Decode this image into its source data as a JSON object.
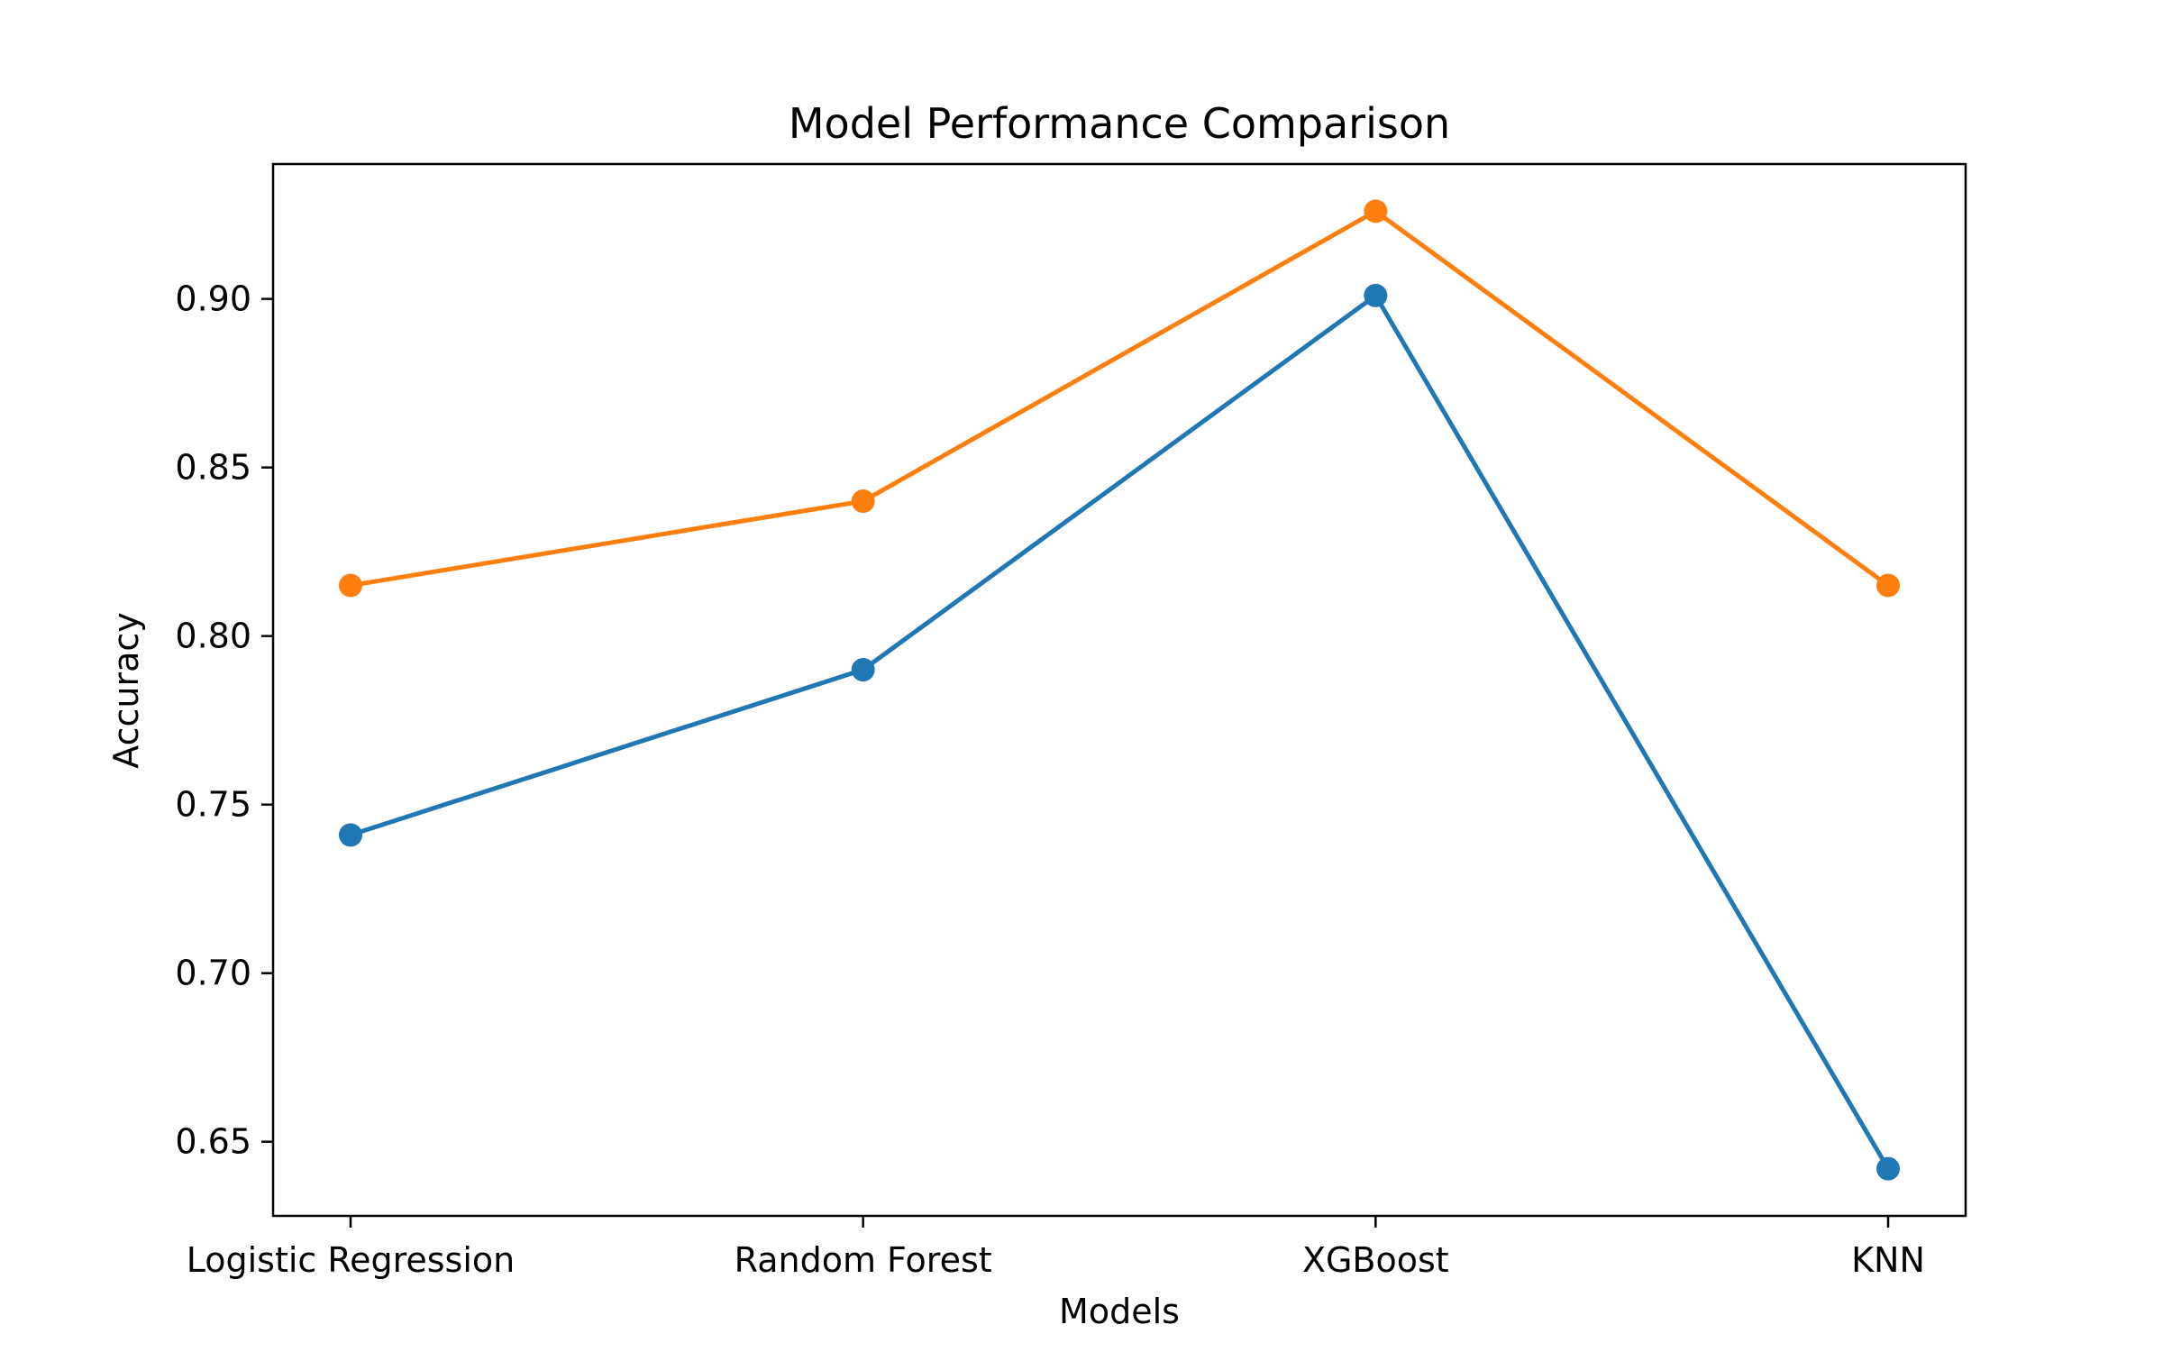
{
  "chart_data": {
    "type": "line",
    "title": "Model Performance Comparison",
    "xlabel": "Models",
    "ylabel": "Accuracy",
    "categories": [
      "Logistic Regression",
      "Random Forest",
      "XGBoost",
      "KNN"
    ],
    "ylim": [
      0.628,
      0.94
    ],
    "yticks": [
      0.65,
      0.7,
      0.75,
      0.8,
      0.85,
      0.9
    ],
    "ytick_labels": [
      "0.65",
      "0.70",
      "0.75",
      "0.80",
      "0.85",
      "0.90"
    ],
    "grid": false,
    "legend": "none",
    "markers": "circle",
    "series": [
      {
        "color": "#1f77b4",
        "values": [
          0.741,
          0.79,
          0.901,
          0.642
        ]
      },
      {
        "color": "#ff7f0e",
        "values": [
          0.815,
          0.84,
          0.926,
          0.815
        ]
      }
    ]
  }
}
